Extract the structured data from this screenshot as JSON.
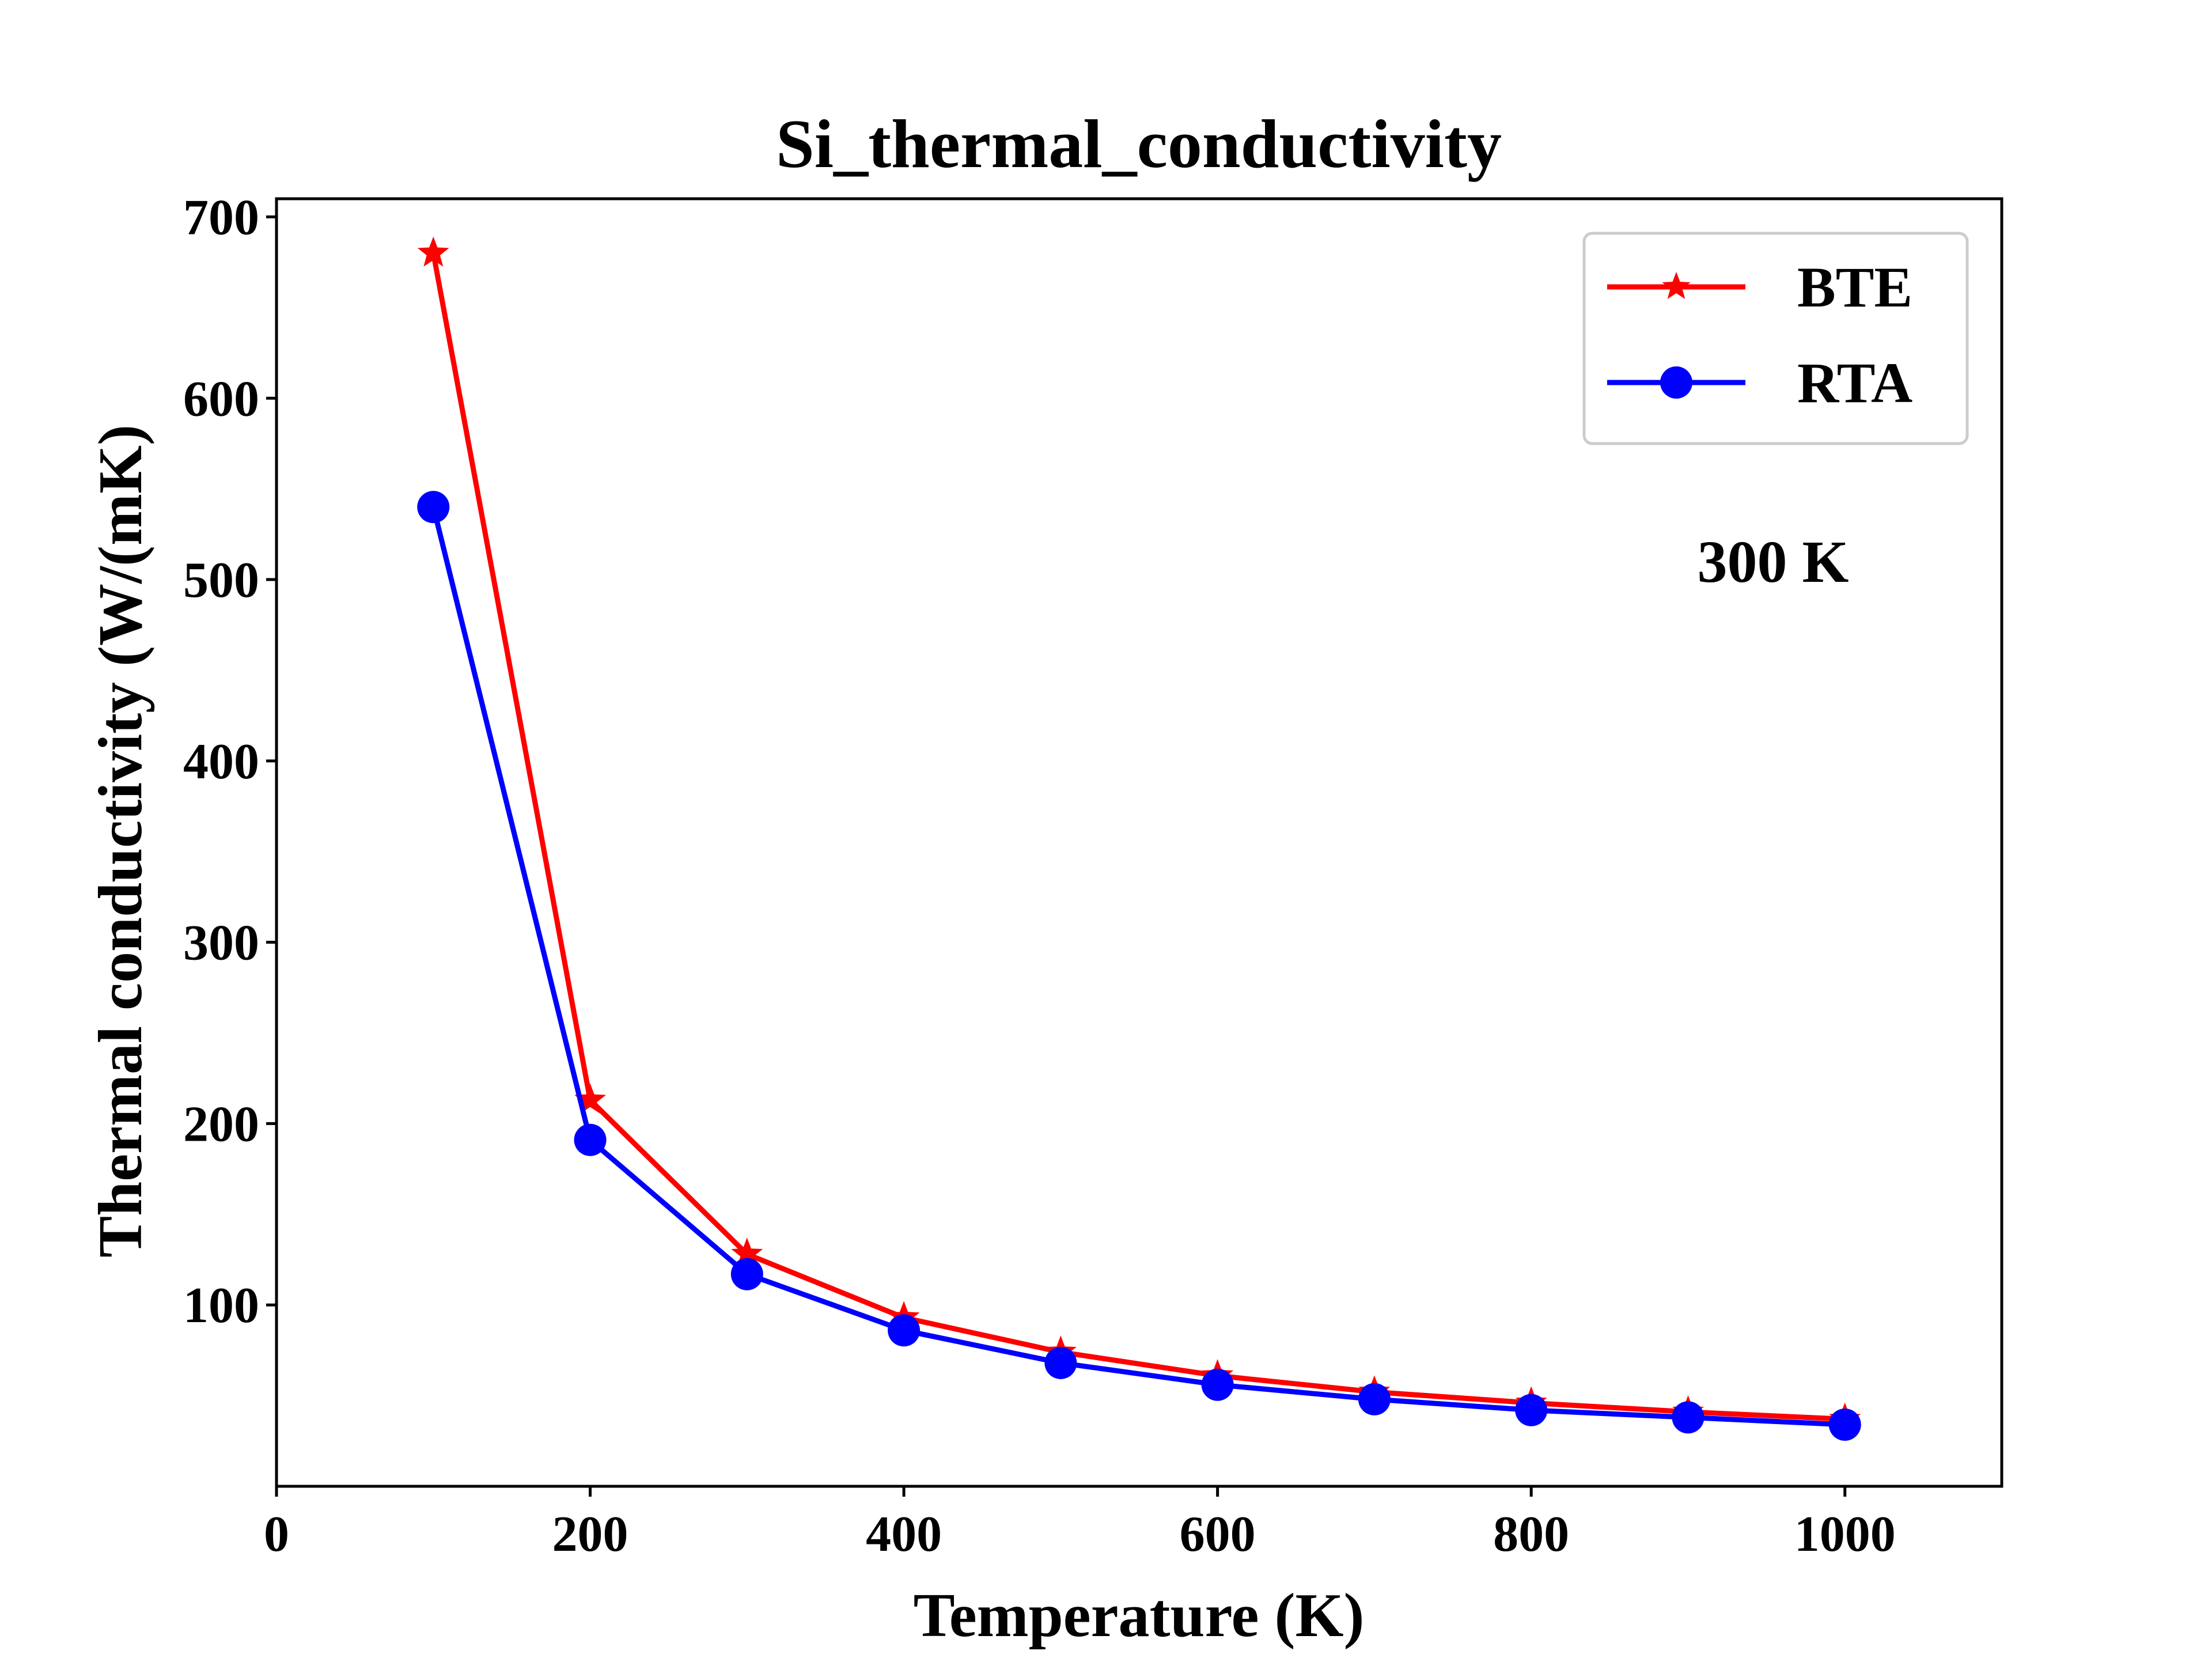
{
  "chart_data": {
    "type": "line",
    "title": "Si_thermal_conductivity",
    "xlabel": "Temperature (K)",
    "ylabel": "Thermal conductivity (W/(mK)",
    "annotation": "300 K",
    "xlim": [
      0,
      1100
    ],
    "ylim": [
      0,
      710
    ],
    "xticks": [
      0,
      200,
      400,
      600,
      800,
      1000
    ],
    "yticks": [
      100,
      200,
      300,
      400,
      500,
      600,
      700
    ],
    "grid": false,
    "legend_position": "top-right",
    "x": [
      100,
      200,
      300,
      400,
      500,
      600,
      700,
      800,
      900,
      1000
    ],
    "series": [
      {
        "name": "BTE",
        "color": "#ff0000",
        "marker": "star",
        "values": [
          680,
          213,
          128,
          93,
          74,
          61,
          52,
          46,
          41,
          37
        ]
      },
      {
        "name": "RTA",
        "color": "#0000ff",
        "marker": "circle",
        "values": [
          540,
          191,
          117,
          86,
          68,
          56,
          48,
          42,
          38,
          34
        ]
      }
    ]
  }
}
